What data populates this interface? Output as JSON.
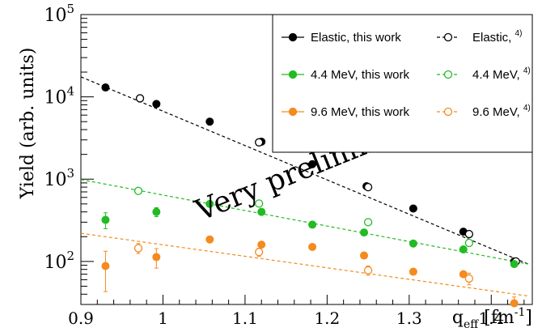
{
  "chart_data": {
    "type": "scatter",
    "title": "",
    "xlabel_main": "q",
    "xlabel_sub": "eff",
    "xlabel_unit_open": " [fm",
    "xlabel_unit_sup": "-1",
    "xlabel_unit_close": "]",
    "ylabel": "Yield (arb. units)",
    "xlim": [
      0.9,
      1.45
    ],
    "ylim": [
      30,
      100000
    ],
    "yscale": "log",
    "grid": false,
    "legend_position": "top-right",
    "x_ticks": [
      "0.9",
      "1",
      "1.1",
      "1.2",
      "1.3",
      "1.4"
    ],
    "x_tick_values": [
      0.9,
      1.0,
      1.1,
      1.2,
      1.3,
      1.4
    ],
    "y_ticks": [
      {
        "value": 100,
        "base": "10",
        "exp": "2"
      },
      {
        "value": 1000,
        "base": "10",
        "exp": "3"
      },
      {
        "value": 10000,
        "base": "10",
        "exp": "4"
      },
      {
        "value": 100000,
        "base": "10",
        "exp": "5"
      }
    ],
    "watermark": "Very preliminary",
    "series": [
      {
        "name": "Elastic, this work",
        "color": "#000000",
        "marker": "filled",
        "points": [
          {
            "x": 0.93,
            "y": 13000
          },
          {
            "x": 0.992,
            "y": 8200
          },
          {
            "x": 1.057,
            "y": 5000
          },
          {
            "x": 1.12,
            "y": 2850
          },
          {
            "x": 1.182,
            "y": 1520
          },
          {
            "x": 1.248,
            "y": 820
          },
          {
            "x": 1.305,
            "y": 440
          },
          {
            "x": 1.366,
            "y": 230
          },
          {
            "x": 1.428,
            "y": 100
          }
        ]
      },
      {
        "name": "Elastic, ",
        "ref": "4)",
        "color": "#000000",
        "marker": "open",
        "fit_line": {
          "x": [
            0.9,
            1.445
          ],
          "y": [
            17500,
            93
          ]
        },
        "points": [
          {
            "x": 0.972,
            "y": 9600
          },
          {
            "x": 1.117,
            "y": 2800
          },
          {
            "x": 1.25,
            "y": 800
          },
          {
            "x": 1.373,
            "y": 215
          },
          {
            "x": 1.43,
            "y": 100
          }
        ]
      },
      {
        "name": "4.4 MeV, this work",
        "color": "#22bb22",
        "marker": "filled",
        "points": [
          {
            "x": 0.93,
            "y": 320,
            "err": 70
          },
          {
            "x": 0.992,
            "y": 400,
            "err": 50
          },
          {
            "x": 1.057,
            "y": 500
          },
          {
            "x": 1.12,
            "y": 400
          },
          {
            "x": 1.182,
            "y": 280
          },
          {
            "x": 1.245,
            "y": 225
          },
          {
            "x": 1.305,
            "y": 165
          },
          {
            "x": 1.366,
            "y": 140
          },
          {
            "x": 1.428,
            "y": 93
          }
        ]
      },
      {
        "name": "4.4 MeV, ",
        "ref": "4)",
        "color": "#22bb22",
        "marker": "open",
        "fit_line": {
          "x": [
            0.9,
            1.445
          ],
          "y": [
            990,
            93
          ]
        },
        "points": [
          {
            "x": 0.97,
            "y": 720
          },
          {
            "x": 1.117,
            "y": 505
          },
          {
            "x": 1.25,
            "y": 300
          },
          {
            "x": 1.373,
            "y": 168
          }
        ]
      },
      {
        "name": "9.6 MeV, this work",
        "color": "#f58a1f",
        "marker": "filled",
        "points": [
          {
            "x": 0.93,
            "y": 88,
            "err": 45
          },
          {
            "x": 0.992,
            "y": 113,
            "err": 30
          },
          {
            "x": 1.057,
            "y": 185
          },
          {
            "x": 1.12,
            "y": 160
          },
          {
            "x": 1.182,
            "y": 150
          },
          {
            "x": 1.245,
            "y": 118
          },
          {
            "x": 1.305,
            "y": 75
          },
          {
            "x": 1.366,
            "y": 70
          },
          {
            "x": 1.428,
            "y": 31,
            "err": 6
          }
        ]
      },
      {
        "name": "9.6 MeV, ",
        "ref": "4)",
        "color": "#f58a1f",
        "marker": "open",
        "fit_line": {
          "x": [
            0.9,
            1.445
          ],
          "y": [
            220,
            38
          ]
        },
        "points": [
          {
            "x": 0.97,
            "y": 145,
            "err": 20
          },
          {
            "x": 1.117,
            "y": 130,
            "err": 15
          },
          {
            "x": 1.25,
            "y": 78,
            "err": 10
          },
          {
            "x": 1.373,
            "y": 62,
            "err": 10
          }
        ]
      }
    ]
  }
}
